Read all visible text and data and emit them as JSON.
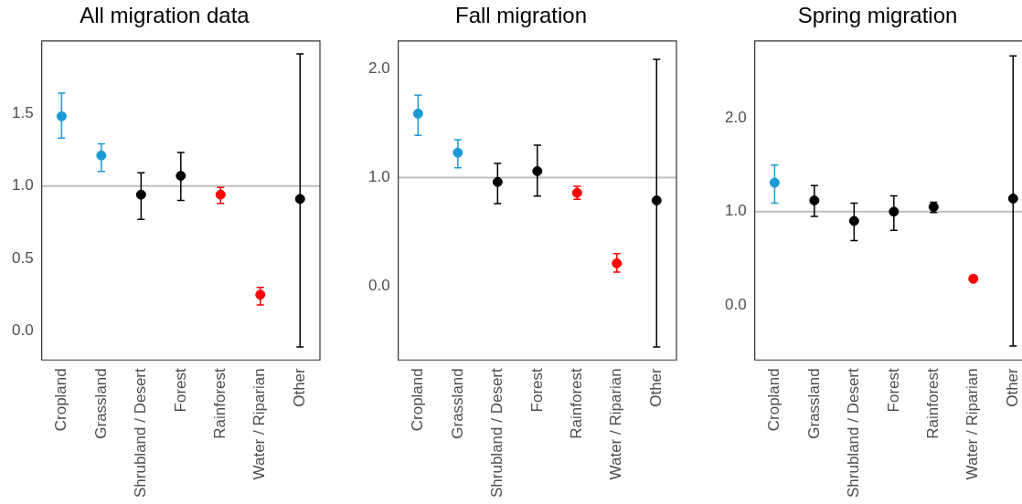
{
  "chart_data": [
    {
      "type": "scatter",
      "title": "All migration data",
      "categories": [
        "Cropland",
        "Grassland",
        "Shrubland / Desert",
        "Forest",
        "Rainforest",
        "Water / Riparian",
        "Other"
      ],
      "values": [
        1.48,
        1.21,
        0.94,
        1.07,
        0.94,
        0.25,
        0.91
      ],
      "errors": [
        [
          1.33,
          1.64
        ],
        [
          1.1,
          1.29
        ],
        [
          0.77,
          1.09
        ],
        [
          0.9,
          1.23
        ],
        [
          0.88,
          0.99
        ],
        [
          0.18,
          0.3
        ],
        [
          -0.11,
          1.91
        ]
      ],
      "colors": [
        "#1a9ad6",
        "#1a9ad6",
        "#000000",
        "#000000",
        "#ff0000",
        "#ff0000",
        "#000000"
      ],
      "ylim": [
        -0.2,
        2.0
      ],
      "yticks": [
        {
          "value": 0,
          "label": "0.0"
        },
        0.5,
        {
          "value": 1,
          "label": "1.0"
        },
        1.5
      ],
      "ref_lines": [
        {
          "axis": "y",
          "value": 1,
          "color": "#bebebe"
        }
      ],
      "grid": false,
      "legend": false,
      "marker": "circle"
    },
    {
      "type": "scatter",
      "title": "Fall migration",
      "categories": [
        "Cropland",
        "Grassland",
        "Shrubland / Desert",
        "Forest",
        "Rainforest",
        "Water / Riparian",
        "Other"
      ],
      "values": [
        1.59,
        1.23,
        0.96,
        1.06,
        0.86,
        0.21,
        0.79
      ],
      "errors": [
        [
          1.39,
          1.76
        ],
        [
          1.09,
          1.35
        ],
        [
          0.76,
          1.13
        ],
        [
          0.83,
          1.3
        ],
        [
          0.8,
          0.92
        ],
        [
          0.13,
          0.3
        ],
        [
          -0.56,
          2.09
        ]
      ],
      "colors": [
        "#1a9ad6",
        "#1a9ad6",
        "#000000",
        "#000000",
        "#ff0000",
        "#ff0000",
        "#000000"
      ],
      "ylim": [
        -0.68,
        2.26
      ],
      "yticks": [
        {
          "value": 0,
          "label": "0.0"
        },
        {
          "value": 1,
          "label": "1.0"
        },
        {
          "value": 2,
          "label": "2.0"
        }
      ],
      "ref_lines": [
        {
          "axis": "y",
          "value": 1,
          "color": "#bebebe"
        }
      ],
      "grid": false,
      "legend": false,
      "marker": "circle"
    },
    {
      "type": "scatter",
      "title": "Spring migration",
      "categories": [
        "Cropland",
        "Grassland",
        "Shrubland / Desert",
        "Forest",
        "Rainforest",
        "Water / Riparian",
        "Other"
      ],
      "values": [
        1.31,
        1.12,
        0.9,
        1.0,
        1.05,
        0.28,
        1.14
      ],
      "errors": [
        [
          1.09,
          1.5
        ],
        [
          0.95,
          1.28
        ],
        [
          0.69,
          1.09
        ],
        [
          0.8,
          1.17
        ],
        [
          0.99,
          1.1
        ],
        [
          0.26,
          0.31
        ],
        [
          -0.44,
          2.67
        ]
      ],
      "colors": [
        "#1a9ad6",
        "#000000",
        "#000000",
        "#000000",
        "#000000",
        "#ff0000",
        "#000000"
      ],
      "ylim": [
        -0.59,
        2.83
      ],
      "yticks": [
        {
          "value": 0,
          "label": "0.0"
        },
        {
          "value": 1,
          "label": "1.0"
        },
        {
          "value": 2,
          "label": "2.0"
        }
      ],
      "ref_lines": [
        {
          "axis": "y",
          "value": 1,
          "color": "#bebebe"
        }
      ],
      "grid": false,
      "legend": false,
      "marker": "circle"
    }
  ]
}
